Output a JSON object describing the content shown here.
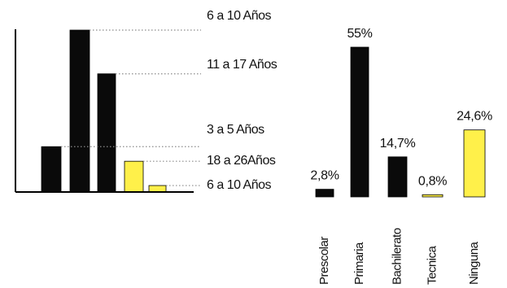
{
  "colors": {
    "black": "#0a0a0a",
    "yellow": "#fff04a",
    "axis": "#000000",
    "dots": "#8a8a8a"
  },
  "chart_data": [
    {
      "type": "bar",
      "title": "",
      "xlabel": "",
      "ylabel": "",
      "categories": [
        "3 a 5 Años",
        "6 a 10 Años",
        "11 a 17 Años",
        "18 a 26Años",
        "6 a 10 Años"
      ],
      "values": [
        28,
        100,
        73,
        19,
        4
      ],
      "bar_colors": [
        "black",
        "black",
        "black",
        "yellow",
        "yellow"
      ],
      "labels_ordered_top_to_bottom": [
        "6 a 10 Años",
        "11 a 17 Años",
        "3 a 5 Años",
        "18 a 26Años",
        "6 a 10 Años"
      ],
      "ylim": [
        0,
        100
      ],
      "axis_labels_shown": false,
      "grid": false,
      "legend": "right (dotted leaders)"
    },
    {
      "type": "bar",
      "title": "",
      "xlabel": "",
      "ylabel": "",
      "categories": [
        "Prescolar",
        "Primaria",
        "Bachilerato",
        "Tecnica",
        "Ninguna"
      ],
      "values": [
        2.8,
        55,
        14.7,
        0.8,
        24.6
      ],
      "data_labels": [
        "2,8%",
        "55%",
        "14,7%",
        "0,8%",
        "24,6%"
      ],
      "bar_colors": [
        "black",
        "black",
        "black",
        "yellow",
        "yellow"
      ],
      "ylim": [
        0,
        55
      ],
      "grid": false
    }
  ]
}
